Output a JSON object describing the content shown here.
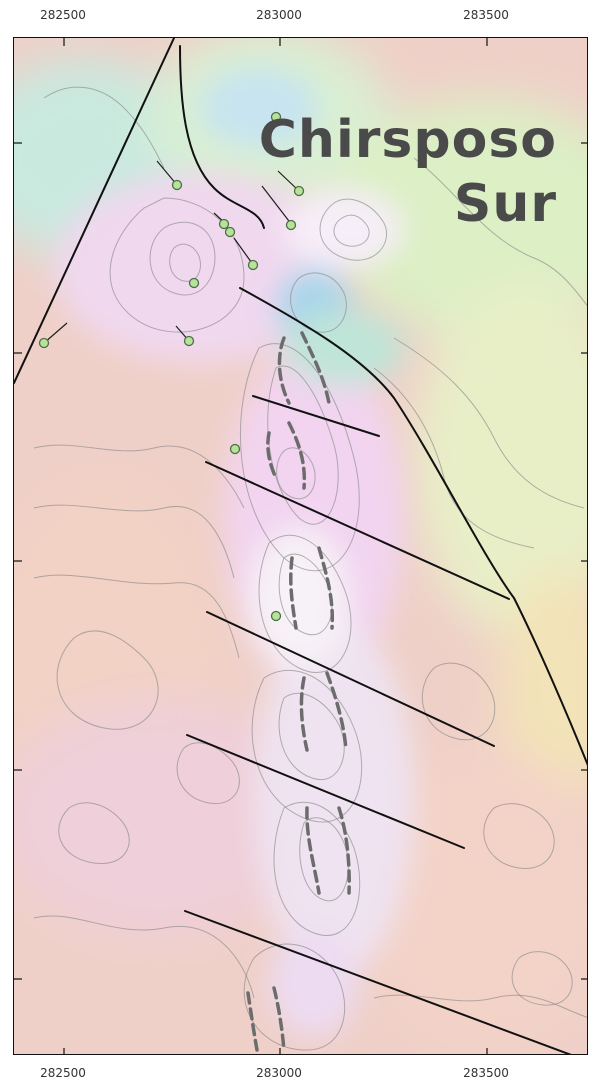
{
  "map": {
    "title_line1": "Chirsposo",
    "title_line2": "Sur",
    "x_ticks": {
      "t1": "282500",
      "t2": "283000",
      "t3": "283500"
    },
    "colors": {
      "frame": "#111111",
      "fault_line": "#111111",
      "contour": "#8b8b8b",
      "dashed_zone": "#6c6c6c",
      "drillhole_fill": "#b5e39a",
      "drillhole_stroke": "#4f6d44",
      "title": "#4a4a4a",
      "high_color": "#efe6f0",
      "mid_color": "#e8bfd0",
      "low_color": "#d5ebd0"
    }
  }
}
